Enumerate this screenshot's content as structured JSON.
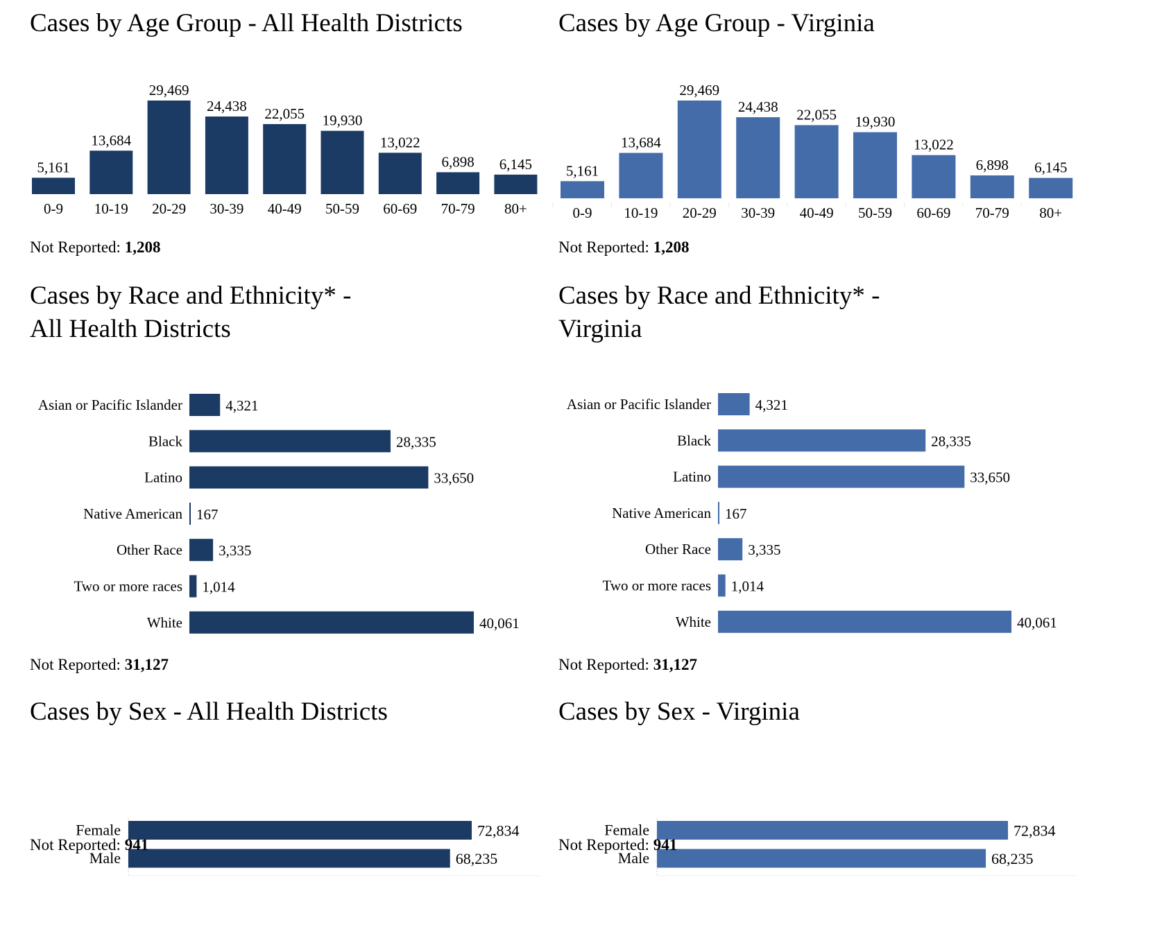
{
  "colors": {
    "left": "#1b3a64",
    "right": "#436ca9",
    "axis": "#e6e6e6"
  },
  "panels": {
    "age_left": {
      "title": "Cases by Age Group - All Health Districts",
      "not_reported_label": "Not Reported:",
      "not_reported_value": "1,208"
    },
    "age_right": {
      "title": "Cases by Age Group - Virginia",
      "not_reported_label": "Not Reported:",
      "not_reported_value": "1,208"
    },
    "race_left": {
      "title_line1": "Cases by Race and Ethnicity* -",
      "title_line2": "All Health Districts",
      "not_reported_label": "Not Reported:",
      "not_reported_value": "31,127"
    },
    "race_right": {
      "title_line1": "Cases by Race and Ethnicity* -",
      "title_line2": "Virginia",
      "not_reported_label": "Not Reported:",
      "not_reported_value": "31,127"
    },
    "sex_left": {
      "title": "Cases by Sex - All Health Districts",
      "not_reported_label": "Not Reported:",
      "not_reported_value": "941"
    },
    "sex_right": {
      "title": "Cases by Sex - Virginia",
      "not_reported_label": "Not Reported:",
      "not_reported_value": "941"
    }
  },
  "chart_data": [
    {
      "id": "age_left",
      "type": "bar",
      "orientation": "vertical",
      "color": "#1b3a64",
      "title": "Cases by Age Group - All Health Districts",
      "categories": [
        "0-9",
        "10-19",
        "20-29",
        "30-39",
        "40-49",
        "50-59",
        "60-69",
        "70-79",
        "80+"
      ],
      "values": [
        5161,
        13684,
        29469,
        24438,
        22055,
        19930,
        13022,
        6898,
        6145
      ],
      "labels": [
        "5,161",
        "13,684",
        "29,469",
        "24,438",
        "22,055",
        "19,930",
        "13,022",
        "6,898",
        "6,145"
      ],
      "xlabel": "",
      "ylabel": "",
      "ylim": [
        0,
        29469
      ],
      "grid": false
    },
    {
      "id": "age_right",
      "type": "bar",
      "orientation": "vertical",
      "color": "#436ca9",
      "title": "Cases by Age Group - Virginia",
      "categories": [
        "0-9",
        "10-19",
        "20-29",
        "30-39",
        "40-49",
        "50-59",
        "60-69",
        "70-79",
        "80+"
      ],
      "values": [
        5161,
        13684,
        29469,
        24438,
        22055,
        19930,
        13022,
        6898,
        6145
      ],
      "labels": [
        "5,161",
        "13,684",
        "29,469",
        "24,438",
        "22,055",
        "19,930",
        "13,022",
        "6,898",
        "6,145"
      ],
      "xlabel": "",
      "ylabel": "",
      "ylim": [
        0,
        29469
      ],
      "grid": false
    },
    {
      "id": "race_left",
      "type": "bar",
      "orientation": "horizontal",
      "color": "#1b3a64",
      "title": "Cases by Race and Ethnicity* - All Health Districts",
      "categories": [
        "Asian or Pacific Islander",
        "Black",
        "Latino",
        "Native American",
        "Other Race",
        "Two or more races",
        "White"
      ],
      "values": [
        4321,
        28335,
        33650,
        167,
        3335,
        1014,
        40061
      ],
      "labels": [
        "4,321",
        "28,335",
        "33,650",
        "167",
        "3,335",
        "1,014",
        "40,061"
      ],
      "xlim": [
        0,
        40061
      ],
      "grid": false
    },
    {
      "id": "race_right",
      "type": "bar",
      "orientation": "horizontal",
      "color": "#436ca9",
      "title": "Cases by Race and Ethnicity* - Virginia",
      "categories": [
        "Asian or Pacific Islander",
        "Black",
        "Latino",
        "Native American",
        "Other Race",
        "Two or more races",
        "White"
      ],
      "values": [
        4321,
        28335,
        33650,
        167,
        3335,
        1014,
        40061
      ],
      "labels": [
        "4,321",
        "28,335",
        "33,650",
        "167",
        "3,335",
        "1,014",
        "40,061"
      ],
      "xlim": [
        0,
        40061
      ],
      "grid": false
    },
    {
      "id": "sex_left",
      "type": "bar",
      "orientation": "horizontal",
      "color": "#1b3a64",
      "title": "Cases by Sex - All Health Districts",
      "categories": [
        "Female",
        "Male"
      ],
      "values": [
        72834,
        68235
      ],
      "labels": [
        "72,834",
        "68,235"
      ],
      "xlim": [
        0,
        72834
      ],
      "grid": false
    },
    {
      "id": "sex_right",
      "type": "bar",
      "orientation": "horizontal",
      "color": "#436ca9",
      "title": "Cases by Sex - Virginia",
      "categories": [
        "Female",
        "Male"
      ],
      "values": [
        72834,
        68235
      ],
      "labels": [
        "72,834",
        "68,235"
      ],
      "xlim": [
        0,
        72834
      ],
      "grid": false
    }
  ]
}
